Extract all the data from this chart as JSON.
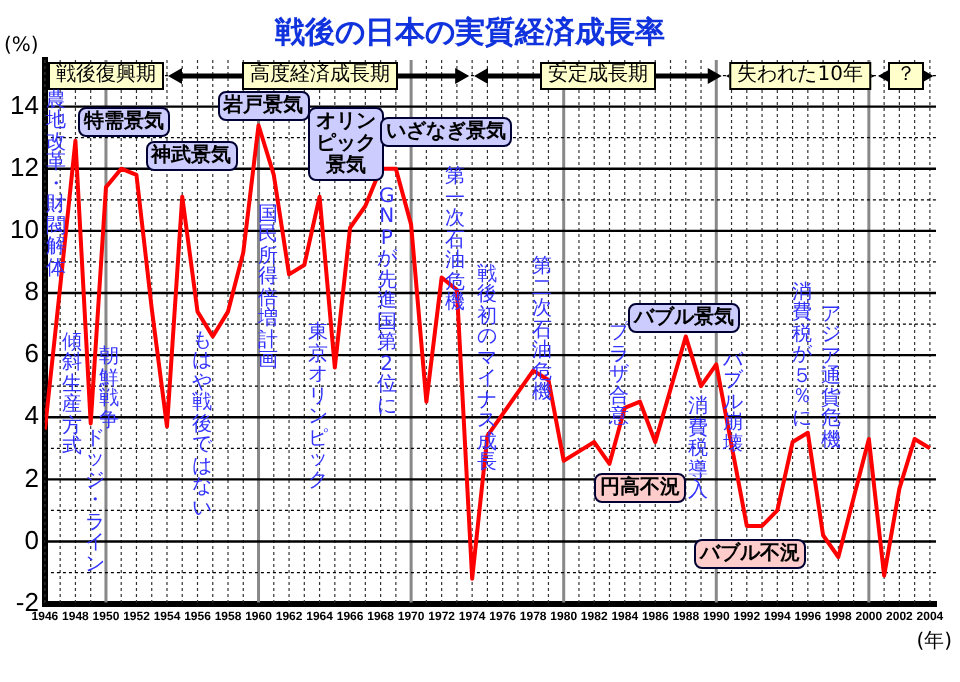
{
  "chart_data": {
    "type": "line",
    "title": "戦後の日本の実質経済成長率",
    "xlabel": "(年)",
    "ylabel": "(%)",
    "x": [
      1946,
      1947,
      1948,
      1949,
      1950,
      1951,
      1952,
      1953,
      1954,
      1955,
      1956,
      1957,
      1958,
      1959,
      1960,
      1961,
      1962,
      1963,
      1964,
      1965,
      1966,
      1967,
      1968,
      1969,
      1970,
      1971,
      1972,
      1973,
      1974,
      1975,
      1976,
      1977,
      1978,
      1979,
      1980,
      1981,
      1982,
      1983,
      1984,
      1985,
      1986,
      1987,
      1988,
      1989,
      1990,
      1991,
      1992,
      1993,
      1994,
      1995,
      1996,
      1997,
      1998,
      1999,
      2000,
      2001,
      2002,
      2003,
      2004
    ],
    "series": [
      {
        "color": "#ff0000",
        "values": [
          3.6,
          8.2,
          12.9,
          3.8,
          11.4,
          12.0,
          11.8,
          7.5,
          3.7,
          11.1,
          7.4,
          6.6,
          7.4,
          9.3,
          13.4,
          11.8,
          8.6,
          8.9,
          11.1,
          5.6,
          10.1,
          10.8,
          12.0,
          12.0,
          10.2,
          4.5,
          8.5,
          8.1,
          -1.2,
          3.4,
          4.1,
          4.8,
          5.5,
          5.2,
          2.6,
          2.9,
          3.2,
          2.5,
          4.3,
          4.5,
          3.2,
          4.9,
          6.6,
          5.0,
          5.7,
          3.1,
          0.5,
          0.5,
          1.0,
          3.2,
          3.5,
          0.2,
          -0.5,
          1.4,
          3.3,
          -1.1,
          1.7,
          3.3,
          3.0
        ]
      }
    ],
    "xlim": [
      1946,
      2004.4
    ],
    "xticks": [
      1946,
      {
        "value": 1947,
        "label": null
      },
      1948,
      {
        "value": 1949,
        "label": null
      },
      1950,
      {
        "value": 1951,
        "label": null
      },
      1952,
      {
        "value": 1953,
        "label": null
      },
      1954,
      {
        "value": 1955,
        "label": null
      },
      1956,
      {
        "value": 1957,
        "label": null
      },
      1958,
      {
        "value": 1959,
        "label": null
      },
      1960,
      {
        "value": 1961,
        "label": null
      },
      1962,
      {
        "value": 1963,
        "label": null
      },
      1964,
      {
        "value": 1965,
        "label": null
      },
      1966,
      {
        "value": 1967,
        "label": null
      },
      1968,
      {
        "value": 1969,
        "label": null
      },
      1970,
      {
        "value": 1971,
        "label": null
      },
      1972,
      {
        "value": 1973,
        "label": null
      },
      1974,
      {
        "value": 1975,
        "label": null
      },
      1976,
      {
        "value": 1977,
        "label": null
      },
      1978,
      {
        "value": 1979,
        "label": null
      },
      1980,
      {
        "value": 1981,
        "label": null
      },
      1982,
      {
        "value": 1983,
        "label": null
      },
      1984,
      {
        "value": 1985,
        "label": null
      },
      1986,
      {
        "value": 1987,
        "label": null
      },
      1988,
      {
        "value": 1989,
        "label": null
      },
      1990,
      {
        "value": 1991,
        "label": null
      },
      1992,
      {
        "value": 1993,
        "label": null
      },
      1994,
      {
        "value": 1995,
        "label": null
      },
      1996,
      {
        "value": 1997,
        "label": null
      },
      1998,
      {
        "value": 1999,
        "label": null
      },
      2000,
      {
        "value": 2001,
        "label": null
      },
      2002,
      {
        "value": 2003,
        "label": null
      },
      2004
    ],
    "ylim": [
      -2,
      15.5
    ],
    "yticks": [
      -2,
      {
        "value": -1,
        "label": null
      },
      0,
      {
        "value": 1,
        "label": null
      },
      2,
      {
        "value": 3,
        "label": null
      },
      4,
      {
        "value": 5,
        "label": null
      },
      6,
      {
        "value": 7,
        "label": null
      },
      8,
      {
        "value": 9,
        "label": null
      },
      10,
      {
        "value": 11,
        "label": null
      },
      12,
      {
        "value": 13,
        "label": null
      },
      14,
      {
        "value": 15,
        "label": null
      }
    ],
    "grid": true,
    "legend": false,
    "marker": "none",
    "line_style": "solid",
    "annotations": [
      "戦後復興期",
      "高度経済成長期",
      "安定成長期",
      "失われた10年",
      "？",
      "農地改革・財閥解体",
      "傾斜生産方式",
      "ドッジ・ライン",
      "朝鮮戦争",
      "特需景気",
      "神武景気",
      "もはや戦後ではない",
      "岩戸景気",
      "国民所得倍増計画",
      "オリンピック景気",
      "東京オリンピック",
      "いざなぎ景気",
      "GNPが先進国第2位に",
      "第一次石油危機",
      "戦後初のマイナス成長",
      "第二次石油危機",
      "プラザ合意",
      "円高不況",
      "バブル景気",
      "消費税導入",
      "バブル崩壊",
      "バブル不況",
      "消費税が５％に",
      "アジア通貨危機"
    ]
  }
}
